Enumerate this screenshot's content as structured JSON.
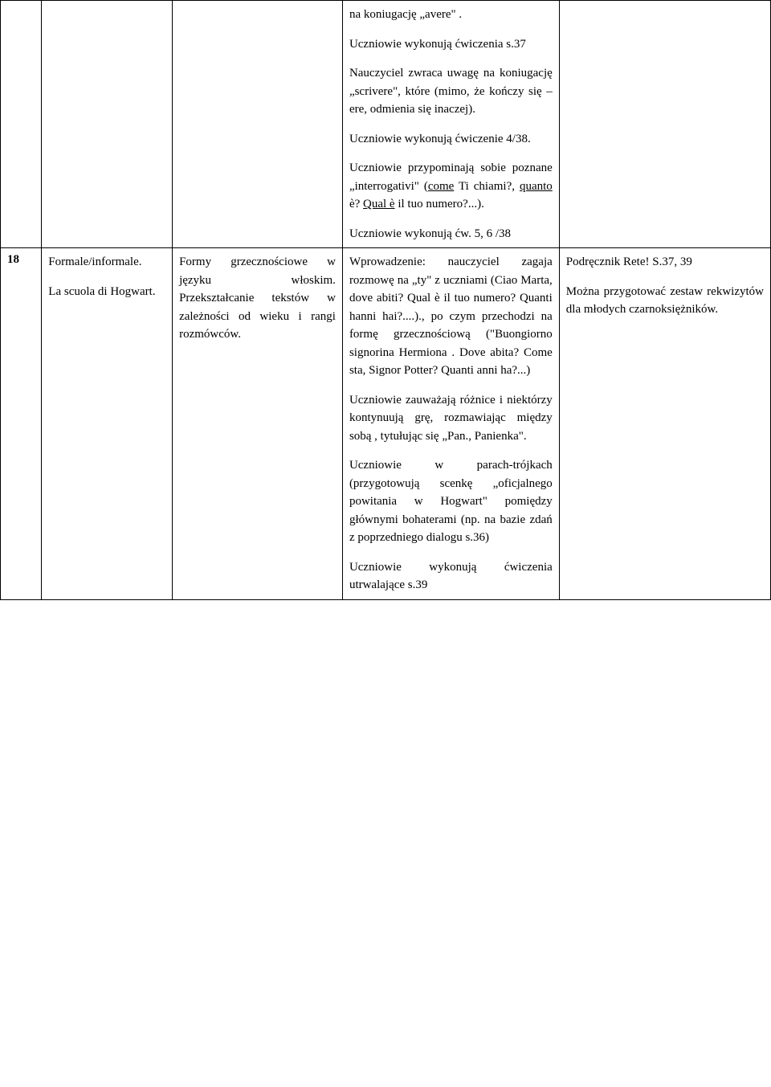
{
  "rows": [
    {
      "num": "",
      "topic": [],
      "goals": [],
      "proc": [
        "na koniugację „avere\" .",
        "Uczniowie wykonują ćwiczenia s.37",
        "Nauczyciel zwraca uwagę na koniugację „scrivere\", które (mimo, że kończy się –ere, odmienia się inaczej).",
        "Uczniowie wykonują ćwiczenie 4/38.",
        "Uczniowie przypominają sobie poznane „interrogativi\" (<u>come</u> Ti chiami?, <u>quanto</u> è? <u>Qual è</u> il tuo numero?...).",
        "Uczniowie wykonują ćw. 5, 6 /38"
      ],
      "notes": []
    },
    {
      "num": "18",
      "topic": [
        "Formale/informale.",
        "La scuola di Hogwart."
      ],
      "goals": [
        "Formy grzecznościowe w języku włoskim. Przekształcanie tekstów w zależności od wieku i rangi rozmówców."
      ],
      "proc": [
        "Wprowadzenie: nauczyciel zagaja rozmowę na „ty\" z uczniami (Ciao Marta, dove abiti? Qual è il tuo numero? Quanti hanni hai?....)., po czym przechodzi na formę grzecznościową (\"Buongiorno signorina Hermiona . Dove abita? Come sta, Signor Potter? Quanti anni ha?...)",
        "Uczniowie zauważają różnice i niektórzy kontynuują grę, rozmawiając między sobą , tytułując się „Pan., Panienka\".",
        "Uczniowie w parach-trójkach (przygotowują scenkę „oficjalnego powitania w Hogwart\" pomiędzy głównymi bohaterami (np. na bazie zdań z poprzedniego dialogu s.36)",
        "Uczniowie wykonują ćwiczenia utrwalające s.39"
      ],
      "notes": [
        "Podręcznik Rete! S.37, 39",
        "Można przygotować zestaw rekwizytów dla młodych czarnoksiężników."
      ]
    }
  ]
}
